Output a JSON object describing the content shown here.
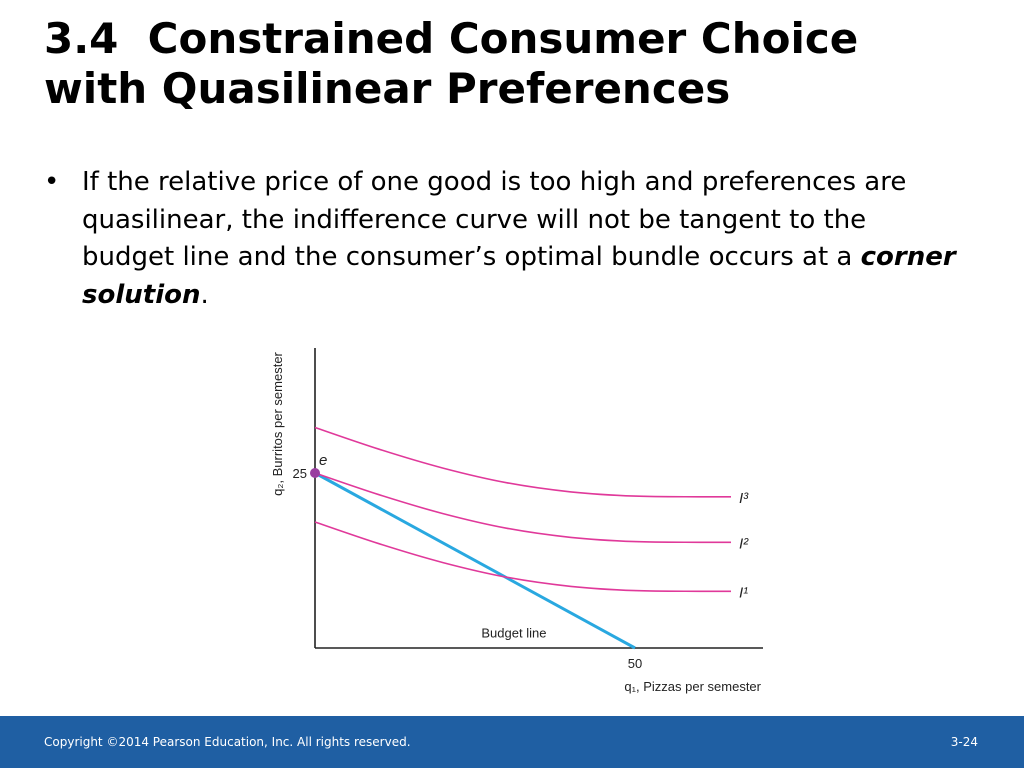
{
  "title": {
    "line1": "3.4  Constrained Consumer Choice",
    "line2": "with Quasilinear Preferences"
  },
  "bullet": {
    "marker": "•",
    "text": "If the relative price of one good is too high and preferences are quasilinear, the indifference curve will not be tangent to the budget line and the consumer’s optimal bundle occurs at a ",
    "emphasis": "corner solution",
    "trailing": "."
  },
  "chart_data": {
    "type": "line",
    "xlabel": "q₁, Pizzas per semester",
    "ylabel": "q₂, Burritos per semester",
    "x_tick_labels": [
      "50"
    ],
    "y_tick_labels": [
      "25"
    ],
    "series": [
      {
        "name": "Budget line",
        "color": "#29a8e0",
        "x": [
          0,
          50
        ],
        "y": [
          25,
          0
        ]
      },
      {
        "name": "I³",
        "color": "#e0399a",
        "x": [
          0,
          10,
          20,
          30,
          40,
          50,
          60,
          65
        ],
        "y": [
          31.5,
          28.4,
          25.7,
          23.6,
          22.3,
          21.7,
          21.6,
          21.6
        ]
      },
      {
        "name": "I²",
        "color": "#e0399a",
        "x": [
          0,
          10,
          20,
          30,
          40,
          50,
          60,
          65
        ],
        "y": [
          25,
          21.9,
          19.2,
          17.1,
          15.8,
          15.2,
          15.1,
          15.1
        ]
      },
      {
        "name": "I¹",
        "color": "#e0399a",
        "x": [
          0,
          10,
          20,
          30,
          40,
          50,
          60,
          65
        ],
        "y": [
          18,
          14.9,
          12.2,
          10.1,
          8.8,
          8.2,
          8.1,
          8.1
        ]
      }
    ],
    "points": [
      {
        "label": "e",
        "x": 0,
        "y": 25,
        "color": "#9a3fa0"
      }
    ],
    "xlim": [
      0,
      70
    ],
    "ylim": [
      0,
      42
    ]
  },
  "footer": {
    "copyright": "Copyright ©2014 Pearson Education, Inc. All rights reserved.",
    "page": "3-24"
  }
}
